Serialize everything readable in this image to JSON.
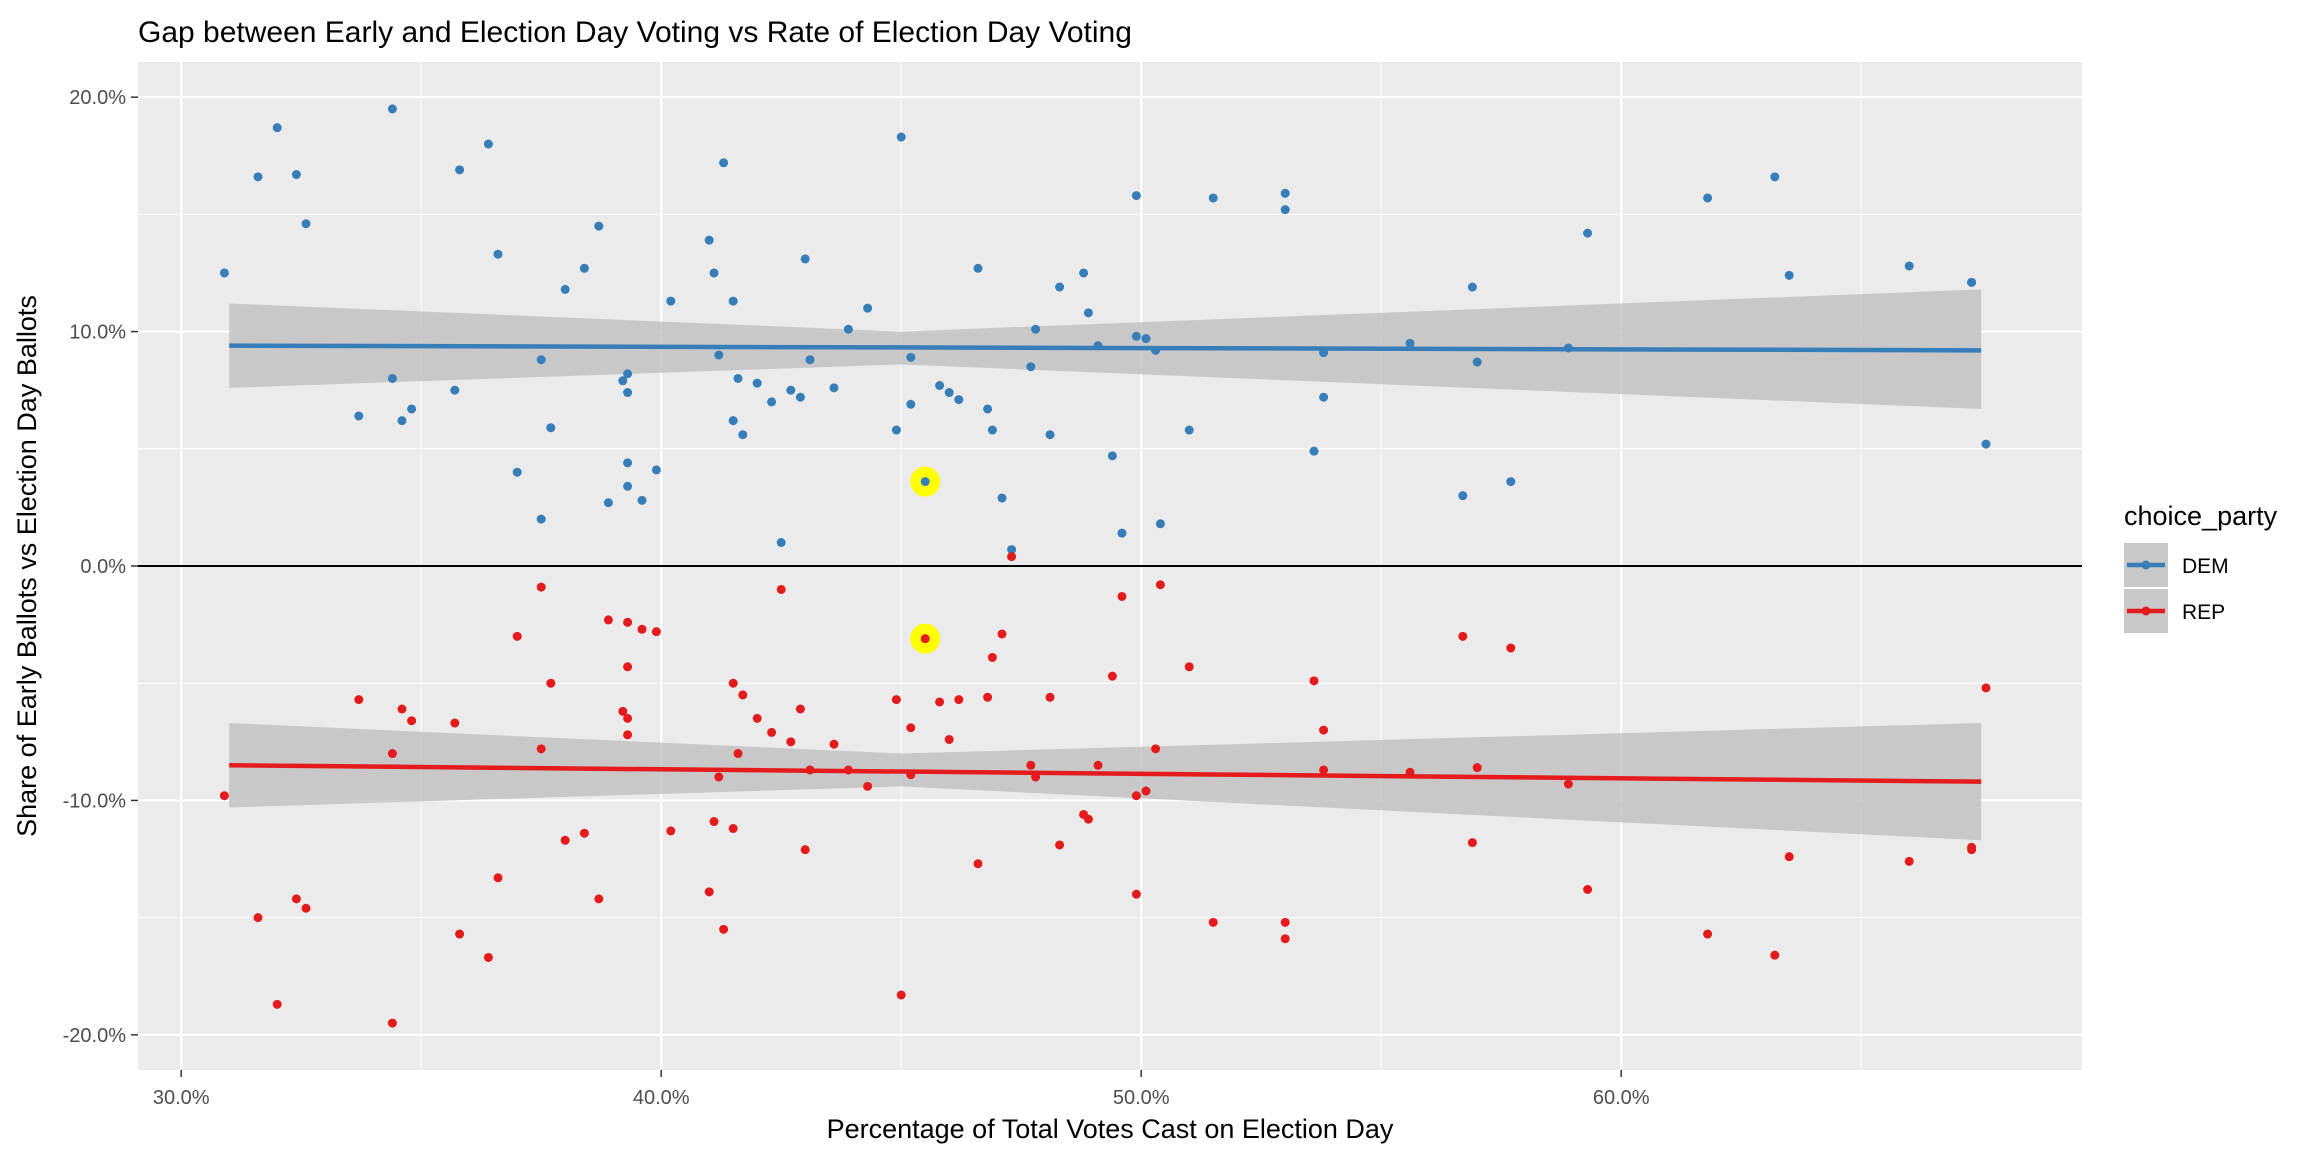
{
  "chart_data": {
    "type": "scatter",
    "title": "Gap between Early and Election Day Voting vs Rate of Election Day Voting",
    "xlabel": "Percentage of Total Votes Cast on Election Day",
    "ylabel": "Share of Early Ballots vs Election Day Ballots",
    "xlim": [
      0.291,
      0.696
    ],
    "ylim": [
      -0.215,
      0.215
    ],
    "x_ticks": [
      0.3,
      0.4,
      0.5,
      0.6
    ],
    "x_tick_labels": [
      "30.0%",
      "40.0%",
      "50.0%",
      "60.0%"
    ],
    "y_ticks": [
      0.2,
      0.1,
      0.0,
      -0.1,
      -0.2
    ],
    "y_tick_labels": [
      "20.0%",
      "10.0%",
      "0.0%",
      "-10.0%",
      "-20.0%"
    ],
    "grid": true,
    "reference_line_y": 0,
    "legend": {
      "title": "choice_party",
      "placement": "right"
    },
    "highlighted_x": 0.455,
    "highlight_color": "#FFFF00",
    "band_color": "#BFBFBF",
    "panel_color": "#EBEBEB",
    "series": [
      {
        "name": "DEM",
        "color": "#377EB8",
        "fit_line": [
          [
            0.31,
            0.094
          ],
          [
            0.675,
            0.092
          ]
        ],
        "band_upper": [
          [
            0.31,
            0.112
          ],
          [
            0.45,
            0.1
          ],
          [
            0.675,
            0.118
          ]
        ],
        "band_lower": [
          [
            0.31,
            0.076
          ],
          [
            0.45,
            0.086
          ],
          [
            0.675,
            0.067
          ]
        ],
        "highlight": [
          0.455,
          0.036
        ],
        "points": [
          [
            0.309,
            0.125
          ],
          [
            0.316,
            0.166
          ],
          [
            0.32,
            0.187
          ],
          [
            0.324,
            0.167
          ],
          [
            0.326,
            0.146
          ],
          [
            0.337,
            0.064
          ],
          [
            0.344,
            0.08
          ],
          [
            0.344,
            0.195
          ],
          [
            0.346,
            0.062
          ],
          [
            0.348,
            0.067
          ],
          [
            0.357,
            0.075
          ],
          [
            0.358,
            0.169
          ],
          [
            0.364,
            0.18
          ],
          [
            0.366,
            0.133
          ],
          [
            0.37,
            0.04
          ],
          [
            0.375,
            0.088
          ],
          [
            0.375,
            0.02
          ],
          [
            0.377,
            0.059
          ],
          [
            0.38,
            0.118
          ],
          [
            0.384,
            0.127
          ],
          [
            0.387,
            0.145
          ],
          [
            0.389,
            0.027
          ],
          [
            0.392,
            0.079
          ],
          [
            0.393,
            0.074
          ],
          [
            0.393,
            0.082
          ],
          [
            0.393,
            0.044
          ],
          [
            0.393,
            0.034
          ],
          [
            0.396,
            0.028
          ],
          [
            0.399,
            0.041
          ],
          [
            0.402,
            0.113
          ],
          [
            0.41,
            0.139
          ],
          [
            0.411,
            0.125
          ],
          [
            0.412,
            0.09
          ],
          [
            0.413,
            0.172
          ],
          [
            0.415,
            0.113
          ],
          [
            0.415,
            0.062
          ],
          [
            0.416,
            0.08
          ],
          [
            0.417,
            0.056
          ],
          [
            0.42,
            0.078
          ],
          [
            0.423,
            0.07
          ],
          [
            0.425,
            0.01
          ],
          [
            0.427,
            0.075
          ],
          [
            0.429,
            0.072
          ],
          [
            0.43,
            0.131
          ],
          [
            0.431,
            0.088
          ],
          [
            0.436,
            0.076
          ],
          [
            0.439,
            0.101
          ],
          [
            0.443,
            0.11
          ],
          [
            0.449,
            0.058
          ],
          [
            0.45,
            0.183
          ],
          [
            0.452,
            0.089
          ],
          [
            0.452,
            0.069
          ],
          [
            0.458,
            0.077
          ],
          [
            0.46,
            0.074
          ],
          [
            0.462,
            0.071
          ],
          [
            0.466,
            0.127
          ],
          [
            0.468,
            0.067
          ],
          [
            0.469,
            0.058
          ],
          [
            0.471,
            0.029
          ],
          [
            0.473,
            0.007
          ],
          [
            0.477,
            0.085
          ],
          [
            0.478,
            0.101
          ],
          [
            0.481,
            0.056
          ],
          [
            0.483,
            0.119
          ],
          [
            0.488,
            0.125
          ],
          [
            0.489,
            0.108
          ],
          [
            0.491,
            0.094
          ],
          [
            0.494,
            0.047
          ],
          [
            0.496,
            0.014
          ],
          [
            0.499,
            0.098
          ],
          [
            0.499,
            0.158
          ],
          [
            0.501,
            0.097
          ],
          [
            0.503,
            0.092
          ],
          [
            0.504,
            0.018
          ],
          [
            0.51,
            0.058
          ],
          [
            0.515,
            0.157
          ],
          [
            0.53,
            0.159
          ],
          [
            0.53,
            0.152
          ],
          [
            0.536,
            0.049
          ],
          [
            0.538,
            0.072
          ],
          [
            0.538,
            0.091
          ],
          [
            0.556,
            0.095
          ],
          [
            0.567,
            0.03
          ],
          [
            0.569,
            0.119
          ],
          [
            0.57,
            0.087
          ],
          [
            0.577,
            0.036
          ],
          [
            0.589,
            0.093
          ],
          [
            0.593,
            0.142
          ],
          [
            0.618,
            0.157
          ],
          [
            0.632,
            0.166
          ],
          [
            0.635,
            0.124
          ],
          [
            0.66,
            0.128
          ],
          [
            0.673,
            0.121
          ],
          [
            0.673,
            0.121
          ],
          [
            0.676,
            0.052
          ]
        ]
      },
      {
        "name": "REP",
        "color": "#E41A1C",
        "fit_line": [
          [
            0.31,
            -0.085
          ],
          [
            0.675,
            -0.092
          ]
        ],
        "band_upper": [
          [
            0.31,
            -0.067
          ],
          [
            0.45,
            -0.08
          ],
          [
            0.675,
            -0.067
          ]
        ],
        "band_lower": [
          [
            0.31,
            -0.103
          ],
          [
            0.45,
            -0.094
          ],
          [
            0.675,
            -0.117
          ]
        ],
        "highlight": [
          0.455,
          -0.031
        ],
        "points": [
          [
            0.309,
            -0.098
          ],
          [
            0.316,
            -0.15
          ],
          [
            0.32,
            -0.187
          ],
          [
            0.324,
            -0.142
          ],
          [
            0.326,
            -0.146
          ],
          [
            0.337,
            -0.057
          ],
          [
            0.344,
            -0.08
          ],
          [
            0.344,
            -0.195
          ],
          [
            0.346,
            -0.061
          ],
          [
            0.348,
            -0.066
          ],
          [
            0.357,
            -0.067
          ],
          [
            0.358,
            -0.157
          ],
          [
            0.364,
            -0.167
          ],
          [
            0.366,
            -0.133
          ],
          [
            0.37,
            -0.03
          ],
          [
            0.375,
            -0.078
          ],
          [
            0.375,
            -0.009
          ],
          [
            0.377,
            -0.05
          ],
          [
            0.38,
            -0.117
          ],
          [
            0.384,
            -0.114
          ],
          [
            0.387,
            -0.142
          ],
          [
            0.389,
            -0.023
          ],
          [
            0.392,
            -0.062
          ],
          [
            0.393,
            -0.065
          ],
          [
            0.393,
            -0.024
          ],
          [
            0.393,
            -0.043
          ],
          [
            0.393,
            -0.072
          ],
          [
            0.396,
            -0.027
          ],
          [
            0.399,
            -0.028
          ],
          [
            0.402,
            -0.113
          ],
          [
            0.41,
            -0.139
          ],
          [
            0.411,
            -0.109
          ],
          [
            0.412,
            -0.09
          ],
          [
            0.413,
            -0.155
          ],
          [
            0.415,
            -0.112
          ],
          [
            0.415,
            -0.05
          ],
          [
            0.416,
            -0.08
          ],
          [
            0.417,
            -0.055
          ],
          [
            0.42,
            -0.065
          ],
          [
            0.423,
            -0.071
          ],
          [
            0.425,
            -0.01
          ],
          [
            0.427,
            -0.075
          ],
          [
            0.429,
            -0.061
          ],
          [
            0.43,
            -0.121
          ],
          [
            0.431,
            -0.087
          ],
          [
            0.436,
            -0.076
          ],
          [
            0.439,
            -0.087
          ],
          [
            0.443,
            -0.094
          ],
          [
            0.449,
            -0.057
          ],
          [
            0.45,
            -0.183
          ],
          [
            0.452,
            -0.069
          ],
          [
            0.452,
            -0.089
          ],
          [
            0.458,
            -0.058
          ],
          [
            0.46,
            -0.074
          ],
          [
            0.462,
            -0.057
          ],
          [
            0.466,
            -0.127
          ],
          [
            0.468,
            -0.056
          ],
          [
            0.469,
            -0.039
          ],
          [
            0.471,
            -0.029
          ],
          [
            0.473,
            0.004
          ],
          [
            0.477,
            -0.085
          ],
          [
            0.478,
            -0.09
          ],
          [
            0.481,
            -0.056
          ],
          [
            0.483,
            -0.119
          ],
          [
            0.488,
            -0.106
          ],
          [
            0.489,
            -0.108
          ],
          [
            0.491,
            -0.085
          ],
          [
            0.494,
            -0.047
          ],
          [
            0.496,
            -0.013
          ],
          [
            0.499,
            -0.098
          ],
          [
            0.499,
            -0.14
          ],
          [
            0.501,
            -0.096
          ],
          [
            0.503,
            -0.078
          ],
          [
            0.504,
            -0.008
          ],
          [
            0.51,
            -0.043
          ],
          [
            0.515,
            -0.152
          ],
          [
            0.53,
            -0.152
          ],
          [
            0.53,
            -0.159
          ],
          [
            0.536,
            -0.049
          ],
          [
            0.538,
            -0.07
          ],
          [
            0.538,
            -0.087
          ],
          [
            0.556,
            -0.088
          ],
          [
            0.567,
            -0.03
          ],
          [
            0.569,
            -0.118
          ],
          [
            0.57,
            -0.086
          ],
          [
            0.577,
            -0.035
          ],
          [
            0.589,
            -0.093
          ],
          [
            0.593,
            -0.138
          ],
          [
            0.618,
            -0.157
          ],
          [
            0.632,
            -0.166
          ],
          [
            0.635,
            -0.124
          ],
          [
            0.66,
            -0.126
          ],
          [
            0.673,
            -0.121
          ],
          [
            0.673,
            -0.12
          ],
          [
            0.676,
            -0.052
          ]
        ]
      }
    ]
  }
}
